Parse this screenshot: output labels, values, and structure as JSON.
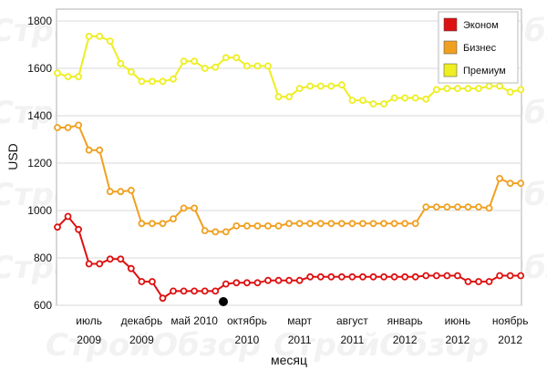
{
  "watermark": "СтройОбзор",
  "chart_data": {
    "type": "line",
    "xlabel": "месяц",
    "ylabel": "USD",
    "ylim": [
      600,
      1850
    ],
    "yticks": [
      600,
      800,
      1000,
      1200,
      1400,
      1600,
      1800
    ],
    "grid": "horizontal",
    "legend_position": "top-right",
    "x_tick_labels": [
      {
        "index": 3,
        "line1": "июль",
        "line2": "2009"
      },
      {
        "index": 8,
        "line1": "декабрь",
        "line2": "2009"
      },
      {
        "index": 13,
        "line1": "май 2010",
        "line2": ""
      },
      {
        "index": 18,
        "line1": "октябрь",
        "line2": "2010"
      },
      {
        "index": 23,
        "line1": "март",
        "line2": "2011"
      },
      {
        "index": 28,
        "line1": "август",
        "line2": "2011"
      },
      {
        "index": 33,
        "line1": "январь",
        "line2": "2012"
      },
      {
        "index": 38,
        "line1": "июнь",
        "line2": "2012"
      },
      {
        "index": 43,
        "line1": "ноябрь",
        "line2": "2012"
      }
    ],
    "series": [
      {
        "name": "Эконом",
        "color": "#dd1111",
        "values": [
          930,
          975,
          920,
          775,
          775,
          795,
          795,
          755,
          700,
          700,
          630,
          660,
          660,
          660,
          660,
          660,
          690,
          695,
          695,
          695,
          705,
          705,
          705,
          705,
          720,
          720,
          720,
          720,
          720,
          720,
          720,
          720,
          720,
          720,
          720,
          725,
          725,
          725,
          725,
          700,
          700,
          700,
          725,
          725,
          725
        ]
      },
      {
        "name": "Бизнес",
        "color": "#f0a020",
        "values": [
          1350,
          1350,
          1360,
          1255,
          1255,
          1080,
          1080,
          1085,
          945,
          945,
          945,
          965,
          1010,
          1010,
          915,
          910,
          910,
          935,
          935,
          935,
          935,
          935,
          945,
          945,
          945,
          945,
          945,
          945,
          945,
          945,
          945,
          945,
          945,
          945,
          945,
          1015,
          1015,
          1015,
          1015,
          1015,
          1015,
          1010,
          1135,
          1115,
          1115
        ]
      },
      {
        "name": "Премиум",
        "color": "#eeee22",
        "values": [
          1580,
          1565,
          1565,
          1735,
          1735,
          1715,
          1620,
          1585,
          1545,
          1545,
          1545,
          1555,
          1630,
          1630,
          1600,
          1605,
          1645,
          1645,
          1610,
          1610,
          1610,
          1480,
          1480,
          1515,
          1525,
          1525,
          1525,
          1530,
          1465,
          1465,
          1450,
          1450,
          1475,
          1475,
          1475,
          1470,
          1510,
          1515,
          1515,
          1515,
          1515,
          1525,
          1525,
          1500,
          1510
        ]
      }
    ]
  }
}
